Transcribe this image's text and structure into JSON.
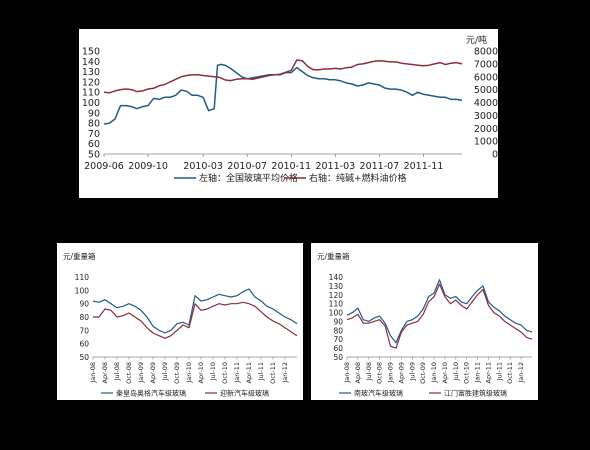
{
  "colors": {
    "blue": "#1f5c8a",
    "red": "#8b2f3a"
  },
  "chart_data": [
    {
      "type": "line",
      "left_axis": {
        "ylim": [
          50,
          150
        ],
        "ticks": [
          50,
          60,
          70,
          80,
          90,
          100,
          110,
          120,
          130,
          140,
          150
        ]
      },
      "right_axis": {
        "unit": "元/吨",
        "ylim": [
          0,
          8000
        ],
        "ticks": [
          0,
          1000,
          2000,
          3000,
          4000,
          5000,
          6000,
          7000,
          8000
        ]
      },
      "x_ticks": [
        "2009-06",
        "2009-10",
        "2010-03",
        "2010-07",
        "2010-11",
        "2011-03",
        "2011-07",
        "2011-11"
      ],
      "x_tick_pos": [
        0,
        4,
        9,
        13,
        17,
        21,
        25,
        29
      ],
      "series": [
        {
          "name": "左轴：全国玻璃平均价格",
          "color": "#1f5c8a",
          "axis": "left",
          "x": [
            0,
            0.5,
            1,
            1.5,
            2,
            2.5,
            3,
            3.5,
            4,
            4.5,
            5,
            5.5,
            6,
            6.5,
            7,
            7.5,
            8,
            8.5,
            9,
            9.5,
            10,
            10.3,
            10.6,
            11,
            11.5,
            12,
            12.5,
            13,
            13.5,
            14,
            14.5,
            15,
            15.5,
            16,
            16.5,
            17,
            17.5,
            18,
            18.5,
            19,
            19.5,
            20,
            20.5,
            21,
            21.5,
            22,
            22.5,
            23,
            23.5,
            24,
            24.5,
            25,
            25.5,
            26,
            26.5,
            27,
            27.5,
            28,
            28.5,
            29,
            29.5,
            30,
            30.5,
            31,
            31.5,
            32,
            32.5
          ],
          "values": [
            79,
            80,
            84,
            97,
            97,
            96,
            94,
            96,
            97,
            104,
            103,
            105,
            105,
            107,
            112,
            111,
            107,
            107,
            105,
            92,
            94,
            136,
            137,
            136,
            133,
            129,
            125,
            123,
            124,
            125,
            126,
            127,
            127,
            127,
            129,
            129,
            134,
            130,
            126,
            124,
            123,
            123,
            122,
            122,
            121,
            119,
            118,
            116,
            117,
            119,
            118,
            117,
            114,
            113,
            113,
            112,
            110,
            107,
            110,
            108,
            107,
            106,
            105,
            105,
            103,
            103,
            102
          ]
        },
        {
          "name": "右轴：纯碱+燃料油价格",
          "color": "#8b2f3a",
          "axis": "right",
          "x": [
            0,
            0.5,
            1,
            1.5,
            2,
            2.5,
            3,
            3.5,
            4,
            4.5,
            5,
            5.5,
            6,
            6.5,
            7,
            7.5,
            8,
            8.5,
            9,
            9.5,
            10,
            10.5,
            11,
            11.5,
            12,
            12.5,
            13,
            13.5,
            14,
            14.5,
            15,
            15.5,
            16,
            16.5,
            17,
            17.5,
            18,
            18.5,
            19,
            19.5,
            20,
            20.5,
            21,
            21.5,
            22,
            22.5,
            23,
            23.5,
            24,
            24.5,
            25,
            25.5,
            26,
            26.5,
            27,
            27.5,
            28,
            28.5,
            29,
            29.5,
            30,
            30.5,
            31,
            31.5,
            32,
            32.5
          ],
          "values": [
            4800,
            4750,
            4900,
            5000,
            5050,
            5000,
            4850,
            4900,
            5050,
            5100,
            5300,
            5400,
            5600,
            5800,
            6000,
            6100,
            6150,
            6150,
            6100,
            6050,
            6000,
            5950,
            5750,
            5700,
            5800,
            5850,
            5850,
            5800,
            5900,
            6000,
            6100,
            6150,
            6200,
            6350,
            6500,
            7300,
            7250,
            6800,
            6550,
            6550,
            6600,
            6600,
            6650,
            6600,
            6700,
            6750,
            6950,
            7000,
            7100,
            7200,
            7250,
            7200,
            7150,
            7150,
            7050,
            7000,
            6950,
            6900,
            6850,
            6900,
            7000,
            7100,
            6950,
            7050,
            7100,
            7000
          ]
        }
      ]
    },
    {
      "type": "line",
      "ylabel": "元/重量箱",
      "ylim": [
        50,
        110
      ],
      "y_ticks": [
        50,
        60,
        70,
        80,
        90,
        100,
        110
      ],
      "x_ticks": [
        "Jan-08",
        "Apr-08",
        "Jul-08",
        "Oct-08",
        "Jan-09",
        "Apr-09",
        "Jul-09",
        "Oct-09",
        "Jan-10",
        "Apr-10",
        "Jul-10",
        "Oct-10",
        "Jan-11",
        "Apr-11",
        "Jul-11",
        "Oct-11",
        "Jan-12"
      ],
      "series": [
        {
          "name": "秦皇岛奥格汽车级玻璃",
          "color": "#1f5c8a",
          "x": [
            0,
            0.5,
            1,
            1.5,
            2,
            2.5,
            3,
            3.5,
            4,
            4.5,
            5,
            5.5,
            6,
            6.5,
            7,
            7.5,
            8,
            8.5,
            9,
            9.5,
            10,
            10.5,
            11,
            11.5,
            12,
            12.5,
            13,
            13.5,
            14,
            14.5,
            15,
            15.5,
            16,
            16.5,
            17
          ],
          "values": [
            92,
            91,
            93,
            90,
            87,
            88,
            90,
            88,
            85,
            80,
            73,
            70,
            68,
            70,
            75,
            76,
            74,
            96,
            92,
            93,
            95,
            97,
            96,
            95,
            96,
            99,
            101,
            95,
            92,
            88,
            86,
            83,
            80,
            78,
            75
          ]
        },
        {
          "name": "迎新汽车级玻璃",
          "color": "#8b2f3a",
          "x": [
            0,
            0.5,
            1,
            1.5,
            2,
            2.5,
            3,
            3.5,
            4,
            4.5,
            5,
            5.5,
            6,
            6.5,
            7,
            7.5,
            8,
            8.5,
            9,
            9.5,
            10,
            10.5,
            11,
            11.5,
            12,
            12.5,
            13,
            13.5,
            14,
            14.5,
            15,
            15.5,
            16,
            16.5,
            17
          ],
          "values": [
            80,
            80,
            86,
            85,
            80,
            81,
            83,
            80,
            77,
            72,
            68,
            66,
            64,
            66,
            70,
            74,
            72,
            90,
            85,
            86,
            88,
            90,
            89,
            90,
            90,
            91,
            90,
            88,
            84,
            80,
            77,
            75,
            72,
            69,
            66
          ]
        }
      ]
    },
    {
      "type": "line",
      "ylabel": "元/重量箱",
      "ylim": [
        50,
        140
      ],
      "y_ticks": [
        50,
        60,
        70,
        80,
        90,
        100,
        110,
        120,
        130,
        140
      ],
      "x_ticks": [
        "Jan-08",
        "Apr-08",
        "Jul-08",
        "Oct-08",
        "Jan-09",
        "Apr-09",
        "Jul-09",
        "Oct-09",
        "Jan-10",
        "Apr-10",
        "Jul-10",
        "Oct-10",
        "Jan-11",
        "Apr-11",
        "Jul-11",
        "Oct-11",
        "Jan-12"
      ],
      "series": [
        {
          "name": "南玻汽车级玻璃",
          "color": "#1f5c8a",
          "x": [
            0,
            0.5,
            1,
            1.5,
            2,
            2.5,
            3,
            3.5,
            4,
            4.5,
            5,
            5.5,
            6,
            6.5,
            7,
            7.5,
            8,
            8.5,
            9,
            9.5,
            10,
            10.5,
            11,
            11.5,
            12,
            12.5,
            13,
            13.5,
            14,
            14.5,
            15,
            15.5,
            16,
            16.5,
            17
          ],
          "values": [
            97,
            100,
            105,
            92,
            90,
            94,
            96,
            88,
            74,
            66,
            80,
            90,
            92,
            96,
            104,
            118,
            122,
            137,
            120,
            116,
            118,
            112,
            110,
            118,
            125,
            130,
            112,
            106,
            102,
            96,
            92,
            88,
            86,
            80,
            78
          ]
        },
        {
          "name": "江门富胜建筑级玻璃",
          "color": "#8b2f3a",
          "x": [
            0,
            0.5,
            1,
            1.5,
            2,
            2.5,
            3,
            3.5,
            4,
            4.5,
            5,
            5.5,
            6,
            6.5,
            7,
            7.5,
            8,
            8.5,
            9,
            9.5,
            10,
            10.5,
            11,
            11.5,
            12,
            12.5,
            13,
            13.5,
            14,
            14.5,
            15,
            15.5,
            16,
            16.5,
            17
          ],
          "values": [
            92,
            94,
            98,
            88,
            88,
            90,
            92,
            85,
            62,
            60,
            78,
            86,
            88,
            90,
            98,
            112,
            118,
            132,
            118,
            110,
            114,
            108,
            104,
            112,
            120,
            126,
            108,
            100,
            96,
            90,
            86,
            82,
            78,
            72,
            70
          ]
        }
      ]
    }
  ]
}
